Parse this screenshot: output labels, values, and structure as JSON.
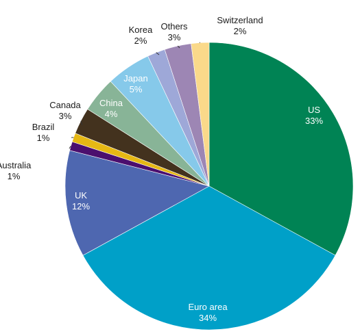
{
  "chart_data": {
    "type": "pie",
    "start_angle_deg": 0,
    "direction": "clockwise",
    "slices": [
      {
        "label": "US",
        "value_label": "33%",
        "value": 33,
        "color": "#008354"
      },
      {
        "label": "Euro area",
        "value_label": "34%",
        "value": 34,
        "color": "#00A0C8"
      },
      {
        "label": "UK",
        "value_label": "12%",
        "value": 12,
        "color": "#4E67B0"
      },
      {
        "label": "Australia",
        "value_label": "1%",
        "value": 1,
        "color": "#4B0F6E"
      },
      {
        "label": "Brazil",
        "value_label": "1%",
        "value": 1,
        "color": "#E6B814"
      },
      {
        "label": "Canada",
        "value_label": "3%",
        "value": 3,
        "color": "#43321E"
      },
      {
        "label": "China",
        "value_label": "4%",
        "value": 4,
        "color": "#88B497"
      },
      {
        "label": "Japan",
        "value_label": "5%",
        "value": 5,
        "color": "#86C9EA"
      },
      {
        "label": "Korea",
        "value_label": "2%",
        "value": 2,
        "color": "#9EA8D8"
      },
      {
        "label": "Others",
        "value_label": "3%",
        "value": 3,
        "color": "#9D86B4"
      },
      {
        "label": "Switzerland",
        "value_label": "2%",
        "value": 2,
        "color": "#FAD98A"
      }
    ]
  }
}
